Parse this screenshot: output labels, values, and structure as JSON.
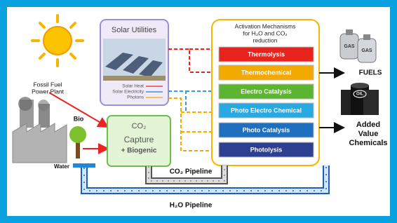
{
  "solar_utilities": {
    "title": "Solar Utilities",
    "legend": [
      "Solar Heat",
      "Solar Electricity",
      "Photons"
    ]
  },
  "activation": {
    "title_lines": [
      "Activation Mechanisms",
      "for H₂O and CO₂",
      "reduction"
    ],
    "mechanisms": [
      {
        "label": "Thermolysis",
        "color": "#e8221c"
      },
      {
        "label": "Thermochemical",
        "color": "#f2a900"
      },
      {
        "label": "Electro Catalysis",
        "color": "#5cb531"
      },
      {
        "label": "Photo Electro Chemical",
        "color": "#29a9e1"
      },
      {
        "label": "Photo Catalysis",
        "color": "#1e6fc0"
      },
      {
        "label": "Photolysis",
        "color": "#2d3f8e"
      }
    ]
  },
  "outputs": {
    "gas_labels": [
      "GAS",
      "GAS"
    ],
    "oil_label": "OIL",
    "fuels": "FUELS",
    "chemicals_lines": [
      "Added",
      "Value",
      "Chemicals"
    ]
  },
  "sources": {
    "fossil_lines": [
      "Fossil Fuel",
      "Power Plant"
    ],
    "bio": "Bio",
    "water": "Water"
  },
  "capture": {
    "lines": [
      "CO₂",
      "Capture",
      "+ Biogenic"
    ]
  },
  "pipelines": {
    "co2": "CO₂ Pipeline",
    "h2o": "H₂O Pipeline"
  }
}
